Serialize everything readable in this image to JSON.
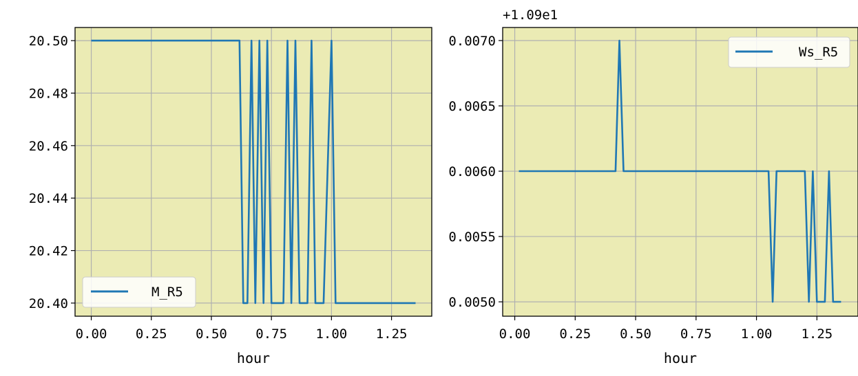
{
  "colors": {
    "background": "#ebebb4",
    "line": "#1f77b4",
    "grid": "#b0b0b0"
  },
  "chart_data": [
    {
      "type": "line",
      "xlabel": "hour",
      "ylabel": "",
      "offset_text": "",
      "xlim": [
        -0.0675,
        1.4175
      ],
      "ylim": [
        20.395,
        20.505
      ],
      "xticks": [
        0.0,
        0.25,
        0.5,
        0.75,
        1.0,
        1.25
      ],
      "xtick_labels": [
        "0.00",
        "0.25",
        "0.50",
        "0.75",
        "1.00",
        "1.25"
      ],
      "yticks": [
        20.4,
        20.42,
        20.44,
        20.46,
        20.48,
        20.5
      ],
      "ytick_labels": [
        "20.40",
        "20.42",
        "20.44",
        "20.46",
        "20.48",
        "20.50"
      ],
      "grid": true,
      "legend_position": "lower-left",
      "series": [
        {
          "name": "M_R5",
          "x": [
            0.0,
            0.617,
            0.633,
            0.65,
            0.667,
            0.683,
            0.7,
            0.717,
            0.733,
            0.75,
            0.8,
            0.817,
            0.833,
            0.85,
            0.867,
            0.9,
            0.917,
            0.933,
            0.967,
            1.0,
            1.017,
            1.35
          ],
          "y": [
            20.5,
            20.5,
            20.4,
            20.4,
            20.5,
            20.4,
            20.5,
            20.4,
            20.5,
            20.4,
            20.4,
            20.5,
            20.4,
            20.5,
            20.4,
            20.4,
            20.5,
            20.4,
            20.4,
            20.5,
            20.4,
            20.4
          ]
        }
      ]
    },
    {
      "type": "line",
      "xlabel": "hour",
      "ylabel": "",
      "offset_text": "+1.09e1",
      "xlim": [
        -0.05,
        1.42
      ],
      "ylim": [
        0.00489,
        0.0071
      ],
      "xticks": [
        0.0,
        0.25,
        0.5,
        0.75,
        1.0,
        1.25
      ],
      "xtick_labels": [
        "0.00",
        "0.25",
        "0.50",
        "0.75",
        "1.00",
        "1.25"
      ],
      "yticks": [
        0.005,
        0.0055,
        0.006,
        0.0065,
        0.007
      ],
      "ytick_labels": [
        "0.0050",
        "0.0055",
        "0.0060",
        "0.0065",
        "0.0070"
      ],
      "grid": true,
      "legend_position": "upper-right",
      "series": [
        {
          "name": "Ws_R5",
          "x": [
            0.017,
            0.417,
            0.433,
            0.45,
            1.05,
            1.067,
            1.083,
            1.2,
            1.217,
            1.233,
            1.25,
            1.283,
            1.3,
            1.317,
            1.35
          ],
          "y": [
            0.006,
            0.006,
            0.007,
            0.006,
            0.006,
            0.005,
            0.006,
            0.006,
            0.005,
            0.006,
            0.005,
            0.005,
            0.006,
            0.005,
            0.005
          ]
        }
      ]
    }
  ]
}
